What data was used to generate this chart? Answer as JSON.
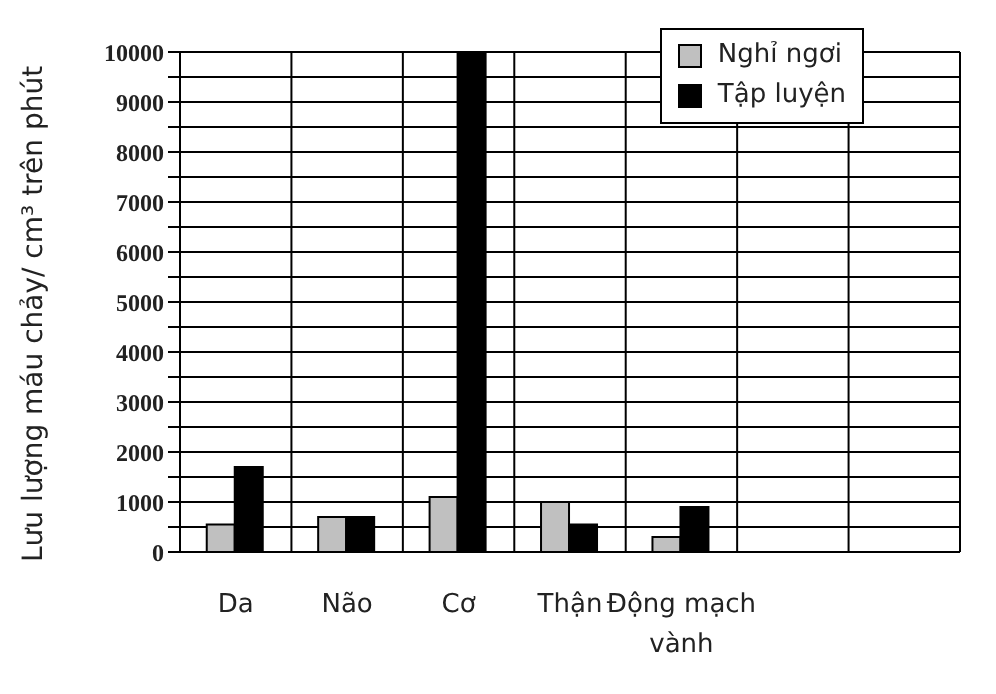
{
  "chart_data": {
    "type": "bar",
    "ylabel": "Lưu lượng máu chảy/ cm³ trên phút",
    "categories": [
      "Da",
      "Não",
      "Cơ",
      "Thận",
      "Động mạch vành",
      null,
      null
    ],
    "series": [
      {
        "name": "Nghỉ ngơi",
        "color": "#c0c0c0",
        "values": [
          550,
          700,
          1100,
          1000,
          300,
          null,
          null
        ]
      },
      {
        "name": "Tập luyện",
        "color": "#000000",
        "values": [
          1700,
          700,
          10000,
          550,
          900,
          null,
          null
        ]
      }
    ],
    "ylim": [
      0,
      10000
    ],
    "yticks": [
      0,
      {
        "value": 500,
        "label": null
      },
      1000,
      {
        "value": 1500,
        "label": null
      },
      2000,
      {
        "value": 2500,
        "label": null
      },
      3000,
      {
        "value": 3500,
        "label": null
      },
      4000,
      {
        "value": 4500,
        "label": null
      },
      5000,
      {
        "value": 5500,
        "label": null
      },
      6000,
      {
        "value": 6500,
        "label": null
      },
      7000,
      {
        "value": 7500,
        "label": null
      },
      8000,
      {
        "value": 8500,
        "label": null
      },
      9000,
      {
        "value": 9500,
        "label": null
      },
      10000
    ],
    "grid": true,
    "legend": "top right"
  }
}
